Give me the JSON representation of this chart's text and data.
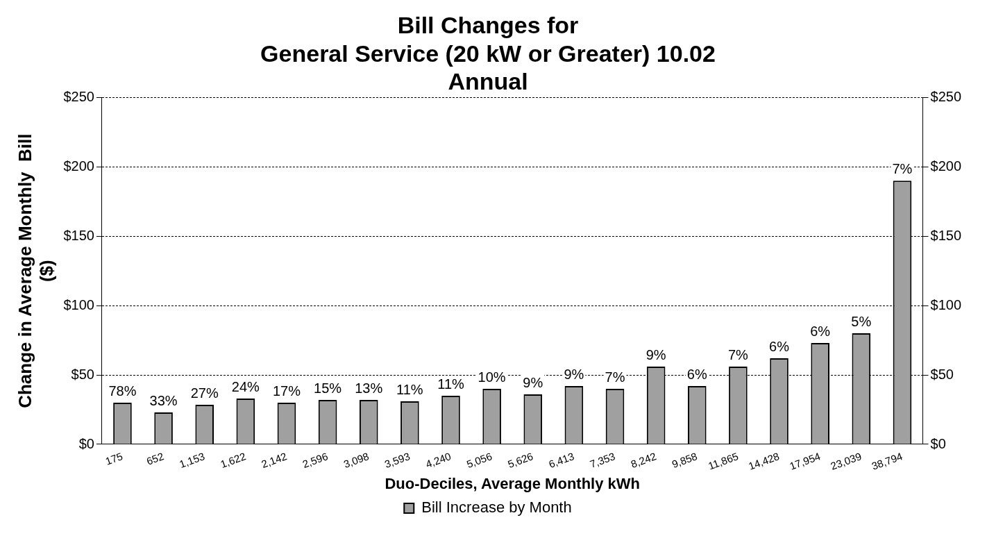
{
  "chart_data": {
    "type": "bar",
    "title": "Bill Changes for\nGeneral Service (20 kW or Greater) 10.02\nAnnual",
    "xlabel": "Duo-Deciles, Average Monthly kWh",
    "ylabel": "Change in Average Monthly  Bill\n($)",
    "categories": [
      "175",
      "652",
      "1,153",
      "1,622",
      "2,142",
      "2,596",
      "3,098",
      "3,593",
      "4,240",
      "5,056",
      "5,626",
      "6,413",
      "7,353",
      "8,242",
      "9,858",
      "11,865",
      "14,428",
      "17,954",
      "23,039",
      "38,794"
    ],
    "series": [
      {
        "name": "Bill Increase by Month",
        "color": "#a0a0a0",
        "values": [
          30,
          23,
          28.5,
          33,
          30,
          32,
          32,
          31,
          35,
          40,
          36,
          42,
          40,
          56,
          42,
          56,
          62,
          73,
          80,
          190
        ]
      }
    ],
    "annotations": [
      {
        "text": "78%",
        "x": "175",
        "y": 30
      },
      {
        "text": "33%",
        "x": "652",
        "y": 23
      },
      {
        "text": "27%",
        "x": "1,153",
        "y": 28.5
      },
      {
        "text": "24%",
        "x": "1,622",
        "y": 33
      },
      {
        "text": "17%",
        "x": "2,142",
        "y": 30
      },
      {
        "text": "15%",
        "x": "2,596",
        "y": 32
      },
      {
        "text": "13%",
        "x": "3,098",
        "y": 32
      },
      {
        "text": "11%",
        "x": "3,593",
        "y": 31
      },
      {
        "text": "11%",
        "x": "4,240",
        "y": 35
      },
      {
        "text": "10%",
        "x": "5,056",
        "y": 40
      },
      {
        "text": "9%",
        "x": "5,626",
        "y": 36
      },
      {
        "text": "9%",
        "x": "6,413",
        "y": 42
      },
      {
        "text": "7%",
        "x": "7,353",
        "y": 40
      },
      {
        "text": "9%",
        "x": "8,242",
        "y": 56
      },
      {
        "text": "6%",
        "x": "9,858",
        "y": 42
      },
      {
        "text": "7%",
        "x": "11,865",
        "y": 56
      },
      {
        "text": "6%",
        "x": "14,428",
        "y": 62
      },
      {
        "text": "6%",
        "x": "17,954",
        "y": 73
      },
      {
        "text": "5%",
        "x": "23,039",
        "y": 80
      },
      {
        "text": "7%",
        "x": "38,794",
        "y": 190
      }
    ],
    "ylim": [
      0,
      250
    ],
    "yticks": [
      {
        "value": 0,
        "label": "$0"
      },
      {
        "value": 50,
        "label": "$50"
      },
      {
        "value": 100,
        "label": "$100"
      },
      {
        "value": 150,
        "label": "$150"
      },
      {
        "value": 200,
        "label": "$200"
      },
      {
        "value": 250,
        "label": "$250"
      }
    ],
    "y2lim": [
      0,
      250
    ],
    "y2ticks": [
      {
        "value": 0,
        "label": "$0"
      },
      {
        "value": 50,
        "label": "$50"
      },
      {
        "value": 100,
        "label": "$100"
      },
      {
        "value": 150,
        "label": "$150"
      },
      {
        "value": 200,
        "label": "$200"
      },
      {
        "value": 250,
        "label": "$250"
      }
    ],
    "grid": "y",
    "line_style": "dashed",
    "legend": "bottom"
  }
}
